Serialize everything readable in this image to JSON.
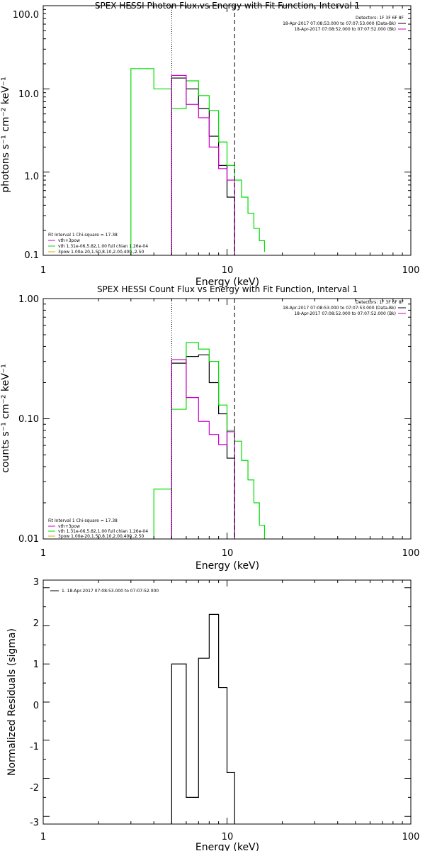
{
  "chart_data": [
    {
      "type": "line",
      "title": "SPEX HESSI Photon Flux vs Energy with Fit Function, Interval 1",
      "xlabel": "Energy (keV)",
      "ylabel": "photons s⁻¹ cm⁻² keV⁻¹",
      "xscale": "log",
      "yscale": "log",
      "xlim": [
        1,
        100
      ],
      "ylim": [
        0.1,
        100
      ],
      "x_ticks": [
        "1",
        "10",
        "100"
      ],
      "y_ticks": [
        "0.1",
        "1.0",
        "10.0",
        "100.0"
      ],
      "legend_top_right": [
        "Detectors: 1F 3F 6F 8F",
        "18-Apr-2017 07:08:53.000 to 07:07:53.000 (Data-Bk)",
        "18-Apr-2017 07:08:52.000 to 07:07:52.000 (Bk)"
      ],
      "legend_bottom_left": [
        "Fit Interval 1   Chi-square = 17.38",
        "vth+3pow",
        "vth 1.31e-06,5.82,1.00  full chian 1.26e-04",
        "3pow 1.00e-20,1.50,8.10,2.00,400.,2.50"
      ],
      "vlines": [
        {
          "x": 5.0,
          "style": "dotted"
        },
        {
          "x": 11.0,
          "style": "dashed"
        }
      ],
      "series": [
        {
          "color": "#000000",
          "edges": [
            5.0,
            6.0,
            7.0,
            8.0,
            9.0,
            10.0,
            11.0
          ],
          "values": [
            13.5,
            10.0,
            5.8,
            2.7,
            1.2,
            0.5
          ]
        },
        {
          "color": "#00dd00",
          "edges": [
            3.0,
            4.0,
            5.0,
            6.0,
            7.0,
            8.0,
            9.0,
            10.0,
            11.0,
            12.0,
            13.0,
            14.0,
            15.0,
            16.0
          ],
          "values": [
            17.5,
            10.0,
            5.8,
            12.5,
            8.3,
            5.5,
            2.3,
            1.2,
            0.8,
            0.5,
            0.32,
            0.21,
            0.15,
            0.11
          ]
        },
        {
          "color": "#cc00cc",
          "edges": [
            5.0,
            6.0,
            7.0,
            8.0,
            9.0,
            10.0,
            11.0
          ],
          "values": [
            14.5,
            6.5,
            4.5,
            2.0,
            1.1,
            0.8
          ]
        }
      ]
    },
    {
      "type": "line",
      "title": "SPEX HESSI Count Flux vs Energy with Fit Function, Interval 1",
      "xlabel": "Energy (keV)",
      "ylabel": "counts s⁻¹ cm⁻² keV⁻¹",
      "xscale": "log",
      "yscale": "log",
      "xlim": [
        1,
        100
      ],
      "ylim": [
        0.01,
        1.0
      ],
      "x_ticks": [
        "1",
        "10",
        "100"
      ],
      "y_ticks": [
        "0.01",
        "0.10",
        "1.00"
      ],
      "legend_top_right": [
        "Detectors: 1F 3F 6F 8F",
        "18-Apr-2017 07:08:53.000 to 07:07:53.000 (Data-Bk)",
        "18-Apr-2017 07:08:52.000 to 07:07:52.000 (Bk)"
      ],
      "legend_bottom_left": [
        "Fit Interval 1   Chi-square = 17.38",
        "vth+3pow",
        "vth 1.31e-06,5.82,1.00  full chian 1.26e-04",
        "3pow 1.00e-20,1.50,8.10,2.00,400.,2.50"
      ],
      "vlines": [
        {
          "x": 5.0,
          "style": "dotted"
        },
        {
          "x": 11.0,
          "style": "dashed"
        }
      ],
      "series": [
        {
          "color": "#000000",
          "edges": [
            5.0,
            6.0,
            7.0,
            8.0,
            9.0,
            10.0,
            11.0
          ],
          "values": [
            0.29,
            0.33,
            0.34,
            0.2,
            0.11,
            0.047
          ]
        },
        {
          "color": "#00dd00",
          "edges": [
            4.0,
            5.0,
            6.0,
            7.0,
            8.0,
            9.0,
            10.0,
            11.0,
            12.0,
            13.0,
            14.0,
            15.0,
            16.0
          ],
          "values": [
            0.026,
            0.12,
            0.43,
            0.38,
            0.3,
            0.13,
            0.08,
            0.065,
            0.045,
            0.031,
            0.02,
            0.013,
            0.01
          ]
        },
        {
          "color": "#cc00cc",
          "edges": [
            5.0,
            6.0,
            7.0,
            8.0,
            9.0,
            10.0,
            11.0
          ],
          "values": [
            0.31,
            0.15,
            0.095,
            0.074,
            0.061,
            0.078
          ]
        }
      ]
    },
    {
      "type": "line",
      "title": "",
      "xlabel": "Energy (keV)",
      "ylabel": "Normalized Residuals (sigma)",
      "xscale": "log",
      "yscale": "linear",
      "xlim": [
        1,
        100
      ],
      "ylim": [
        -3.2,
        3.2
      ],
      "x_ticks": [
        "1",
        "10",
        "100"
      ],
      "y_ticks": [
        "-3",
        "-2",
        "-1",
        "0",
        "1",
        "2",
        "3"
      ],
      "legend_top_left": [
        "1. 18-Apr-2017 07:08:53.000 to 07:07:52.000"
      ],
      "series": [
        {
          "color": "#000000",
          "edges": [
            5.0,
            6.0,
            7.0,
            8.0,
            9.0,
            10.0,
            11.0
          ],
          "values": [
            1.0,
            -2.5,
            1.15,
            2.3,
            0.38,
            -1.85
          ]
        }
      ]
    }
  ]
}
